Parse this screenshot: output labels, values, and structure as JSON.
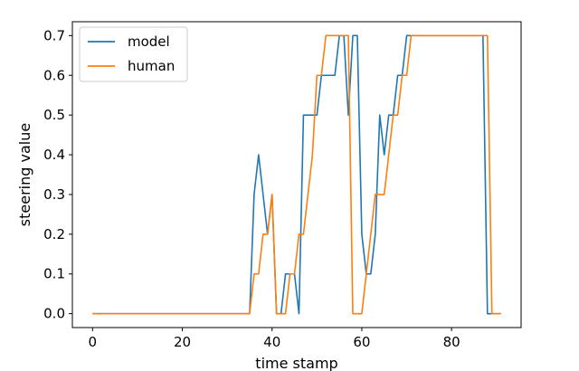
{
  "chart_data": {
    "type": "line",
    "title": "",
    "xlabel": "time stamp",
    "ylabel": "steering value",
    "xlim": [
      -4.5,
      95.5
    ],
    "ylim": [
      -0.035,
      0.735
    ],
    "xticks": [
      0,
      20,
      40,
      60,
      80
    ],
    "yticks": [
      0.0,
      0.1,
      0.2,
      0.3,
      0.4,
      0.5,
      0.6,
      0.7
    ],
    "grid": false,
    "legend_position": "top-left",
    "series": [
      {
        "name": "model",
        "color": "#1f77b4",
        "x": [
          0,
          35,
          36,
          37,
          38,
          39,
          40,
          41,
          42,
          43,
          44,
          45,
          46,
          47,
          48,
          49,
          50,
          51,
          52,
          53,
          54,
          55,
          56,
          57,
          58,
          59,
          60,
          61,
          62,
          63,
          64,
          65,
          66,
          67,
          68,
          69,
          70,
          71,
          72,
          87,
          88,
          89,
          90,
          91
        ],
        "y": [
          0.0,
          0.0,
          0.3,
          0.4,
          0.3,
          0.2,
          0.3,
          0.0,
          0.0,
          0.1,
          0.1,
          0.1,
          0.0,
          0.5,
          0.5,
          0.5,
          0.5,
          0.6,
          0.6,
          0.6,
          0.6,
          0.7,
          0.7,
          0.5,
          0.7,
          0.7,
          0.2,
          0.1,
          0.1,
          0.2,
          0.5,
          0.4,
          0.5,
          0.5,
          0.6,
          0.6,
          0.7,
          0.7,
          0.7,
          0.7,
          0.0,
          0.0,
          0.0,
          0.0
        ]
      },
      {
        "name": "human",
        "color": "#ff7f0e",
        "x": [
          0,
          35,
          36,
          37,
          38,
          39,
          40,
          41,
          42,
          43,
          44,
          45,
          46,
          47,
          48,
          49,
          50,
          51,
          52,
          53,
          54,
          55,
          56,
          57,
          58,
          59,
          60,
          61,
          62,
          63,
          64,
          65,
          66,
          67,
          68,
          69,
          70,
          71,
          72,
          88,
          89,
          90,
          91
        ],
        "y": [
          0.0,
          0.0,
          0.1,
          0.1,
          0.2,
          0.2,
          0.3,
          0.0,
          0.0,
          0.0,
          0.1,
          0.1,
          0.2,
          0.2,
          0.3,
          0.4,
          0.6,
          0.6,
          0.7,
          0.7,
          0.7,
          0.7,
          0.7,
          0.7,
          0.0,
          0.0,
          0.0,
          0.1,
          0.2,
          0.3,
          0.3,
          0.3,
          0.4,
          0.5,
          0.5,
          0.6,
          0.6,
          0.7,
          0.7,
          0.7,
          0.0,
          0.0,
          0.0
        ]
      }
    ]
  }
}
